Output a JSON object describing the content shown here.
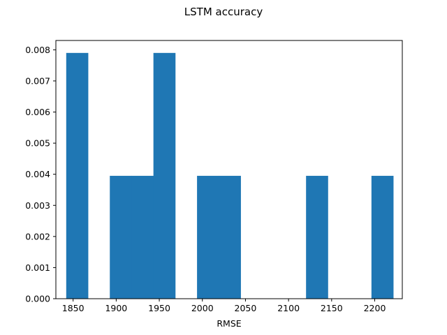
{
  "chart_data": {
    "type": "bar",
    "title": "LSTM accuracy",
    "xlabel": "RMSE",
    "ylabel": "",
    "xlim": [
      1830,
      2232
    ],
    "ylim": [
      0,
      0.0083
    ],
    "xticks": [
      1850,
      1900,
      1950,
      2000,
      2050,
      2100,
      2150,
      2200
    ],
    "xtick_labels": [
      "1850",
      "1900",
      "1950",
      "2000",
      "2050",
      "2100",
      "2150",
      "2200"
    ],
    "yticks": [
      0,
      0.001,
      0.002,
      0.003,
      0.004,
      0.005,
      0.006,
      0.007,
      0.008
    ],
    "ytick_labels": [
      "0.000",
      "0.001",
      "0.002",
      "0.003",
      "0.004",
      "0.005",
      "0.006",
      "0.007",
      "0.008"
    ],
    "bin_edges": [
      1842,
      1867.3,
      1892.6,
      1917.9,
      1943.2,
      1968.5,
      1993.8,
      2019.1,
      2044.4,
      2069.7,
      2095,
      2120.3,
      2145.6,
      2170.9,
      2196.2,
      2221.5
    ],
    "values": [
      0.0079,
      0,
      0.00395,
      0.00395,
      0.0079,
      0,
      0.00395,
      0.00395,
      0,
      0,
      0,
      0.00395,
      0,
      0,
      0.00395
    ],
    "bar_color": "#1f77b4",
    "grid": false
  }
}
